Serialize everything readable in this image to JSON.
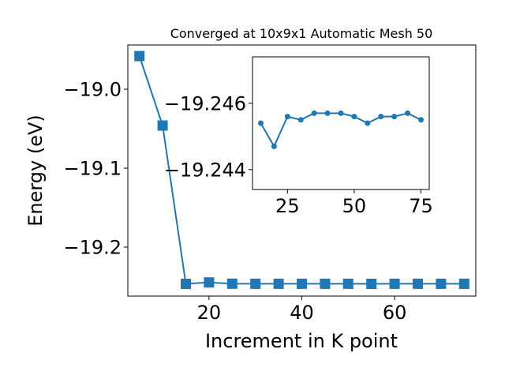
{
  "chart_data": [
    {
      "type": "line",
      "title": "Converged at 10x9x1 Automatic Mesh 50",
      "xlabel": "Increment in K point",
      "ylabel": "Energy (eV)",
      "xlim": [
        2.5,
        77.5
      ],
      "ylim": [
        -19.262,
        -18.944
      ],
      "xticks": [
        20,
        40,
        60
      ],
      "xtick_labels": [
        "20",
        "40",
        "60"
      ],
      "yticks": [
        -19.0,
        -19.1,
        -19.2
      ],
      "ytick_labels": [
        "−19.0",
        "−19.1",
        "−19.2"
      ],
      "grid": false,
      "series": [
        {
          "marker": "square",
          "color": "#1f77b4",
          "x": [
            5,
            10,
            15,
            20,
            25,
            30,
            35,
            40,
            45,
            50,
            55,
            60,
            65,
            70,
            75
          ],
          "y": [
            -18.958,
            -19.046,
            -19.2465,
            -19.2447,
            -19.2463,
            -19.2464,
            -19.2464,
            -19.2464,
            -19.2464,
            -19.2464,
            -19.2465,
            -19.2464,
            -19.2464,
            -19.2464,
            -19.2464
          ]
        }
      ]
    },
    {
      "type": "line",
      "title": "",
      "xlabel": "",
      "ylabel": "",
      "xlim": [
        11.9,
        78.1
      ],
      "ylim": [
        -19.2434,
        -19.2474
      ],
      "xticks": [
        25,
        50,
        75
      ],
      "xtick_labels": [
        "25",
        "50",
        "75"
      ],
      "yticks": [
        -19.246,
        -19.244
      ],
      "ytick_labels": [
        "−19.246",
        "−19.244"
      ],
      "grid": false,
      "series": [
        {
          "marker": "circle",
          "color": "#1f77b4",
          "x": [
            15,
            20,
            25,
            30,
            35,
            40,
            45,
            50,
            55,
            60,
            65,
            70,
            75
          ],
          "y": [
            -19.2454,
            -19.2447,
            -19.2456,
            -19.2455,
            -19.2457,
            -19.2457,
            -19.2457,
            -19.2456,
            -19.2454,
            -19.2456,
            -19.2456,
            -19.2457,
            -19.2455
          ]
        }
      ]
    }
  ]
}
